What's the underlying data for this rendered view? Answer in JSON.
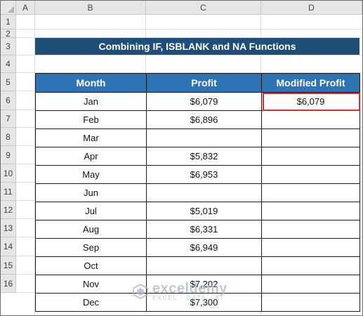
{
  "columns": [
    "A",
    "B",
    "C",
    "D"
  ],
  "rows": [
    "1",
    "2",
    "3",
    "4",
    "5",
    "6",
    "7",
    "8",
    "9",
    "10",
    "11",
    "12",
    "13",
    "14",
    "15",
    "16"
  ],
  "title": "Combining IF, ISBLANK and NA Functions",
  "table": {
    "headers": [
      "Month",
      "Profit",
      "Modified Profit"
    ],
    "rows": [
      {
        "month": "Jan",
        "profit": "$6,079",
        "modified": "$6,079"
      },
      {
        "month": "Feb",
        "profit": "$6,896",
        "modified": ""
      },
      {
        "month": "Mar",
        "profit": "",
        "modified": ""
      },
      {
        "month": "Apr",
        "profit": "$5,832",
        "modified": ""
      },
      {
        "month": "May",
        "profit": "$6,953",
        "modified": ""
      },
      {
        "month": "Jun",
        "profit": "",
        "modified": ""
      },
      {
        "month": "Jul",
        "profit": "$5,019",
        "modified": ""
      },
      {
        "month": "Aug",
        "profit": "$6,331",
        "modified": ""
      },
      {
        "month": "Sep",
        "profit": "$6,949",
        "modified": ""
      },
      {
        "month": "Oct",
        "profit": "",
        "modified": ""
      },
      {
        "month": "Nov",
        "profit": "$7,202",
        "modified": ""
      },
      {
        "month": "Dec",
        "profit": "$7,300",
        "modified": ""
      }
    ]
  },
  "selected_cell": "D5",
  "watermark": {
    "brand": "exceldemy",
    "tagline": "EXCEL · DATA · BI"
  },
  "colors": {
    "title_bg": "#1f4e79",
    "header_bg": "#2e74b5",
    "selection": "#d9302a"
  }
}
